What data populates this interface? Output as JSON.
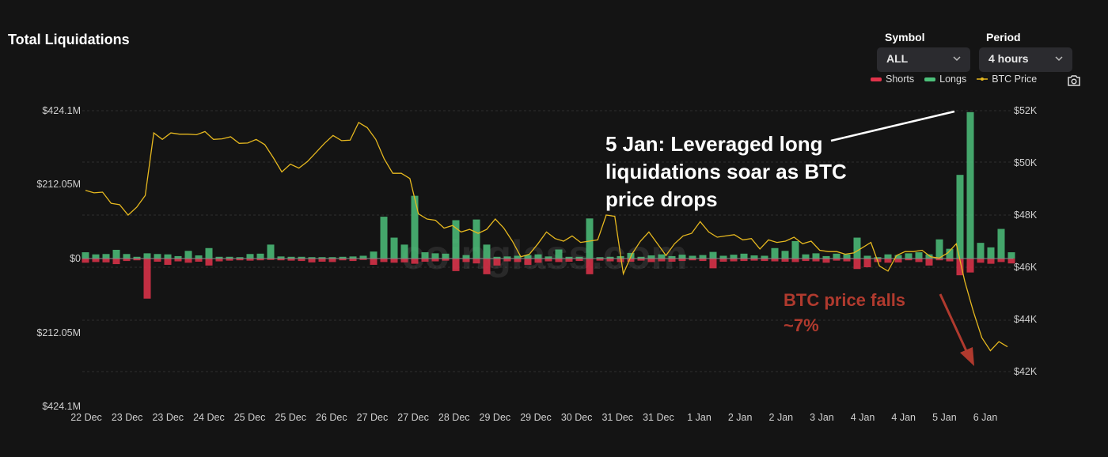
{
  "header": {
    "title": "Total Liquidations",
    "symbol_label": "Symbol",
    "symbol_value": "ALL",
    "period_label": "Period",
    "period_value": "4 hours"
  },
  "legend": [
    {
      "name": "Shorts",
      "color": "#e0334a",
      "marker": "bar"
    },
    {
      "name": "Longs",
      "color": "#4cc07a",
      "marker": "bar"
    },
    {
      "name": "BTC Price",
      "color": "#e6b81f",
      "marker": "line"
    }
  ],
  "icons": {
    "screenshot": "camera-icon",
    "dropdown": "chevron-down-icon"
  },
  "watermark": "coinglass.com",
  "annotations": {
    "main": [
      "5 Jan: Leveraged long",
      "liquidations soar as BTC",
      "price drops"
    ],
    "price_fall": [
      "BTC price falls",
      "~7%"
    ]
  },
  "chart_data": {
    "type": "bar",
    "title": "Total Liquidations",
    "x_tick_labels": [
      "22 Dec",
      "23 Dec",
      "23 Dec",
      "24 Dec",
      "25 Dec",
      "25 Dec",
      "26 Dec",
      "27 Dec",
      "27 Dec",
      "28 Dec",
      "29 Dec",
      "29 Dec",
      "30 Dec",
      "31 Dec",
      "31 Dec",
      "1 Jan",
      "2 Jan",
      "2 Jan",
      "3 Jan",
      "4 Jan",
      "4 Jan",
      "5 Jan",
      "6 Jan"
    ],
    "y_left_tick_labels": [
      "$424.1M",
      "$212.05M",
      "$0",
      "$212.05M",
      "$424.1M"
    ],
    "y_left_range_musd": [
      -424.1,
      424.1
    ],
    "y_right_tick_labels": [
      "$52K",
      "$50K",
      "$48K",
      "$46K",
      "$44K",
      "$42K"
    ],
    "y_right_range_usd": [
      42000,
      52000
    ],
    "grid": true,
    "legend_position": "top-right",
    "series": [
      {
        "name": "Longs",
        "color": "#4cc07a",
        "units": "USD millions",
        "values": [
          18,
          12,
          13,
          25,
          13,
          5,
          15,
          13,
          12,
          7,
          22,
          9,
          30,
          5,
          5,
          4,
          13,
          14,
          40,
          6,
          5,
          5,
          4,
          4,
          4,
          5,
          6,
          8,
          20,
          120,
          60,
          40,
          180,
          18,
          15,
          14,
          110,
          10,
          112,
          40,
          5,
          6,
          8,
          10,
          12,
          6,
          26,
          5,
          5,
          115,
          4,
          5,
          7,
          16,
          5,
          9,
          12,
          7,
          11,
          8,
          10,
          19,
          8,
          11,
          14,
          9,
          8,
          30,
          22,
          50,
          12,
          15,
          7,
          14,
          12,
          60,
          8,
          4,
          12,
          10,
          15,
          18,
          12,
          55,
          28,
          240,
          420,
          45,
          32,
          85,
          18
        ]
      },
      {
        "name": "Shorts",
        "color": "#e0334a",
        "units": "USD millions",
        "values": [
          12,
          10,
          11,
          16,
          7,
          5,
          115,
          9,
          18,
          8,
          12,
          9,
          20,
          8,
          6,
          5,
          6,
          5,
          4,
          5,
          6,
          7,
          11,
          9,
          10,
          5,
          7,
          4,
          18,
          10,
          12,
          11,
          15,
          9,
          8,
          6,
          36,
          10,
          14,
          45,
          20,
          8,
          10,
          18,
          12,
          8,
          10,
          9,
          7,
          45,
          6,
          8,
          10,
          9,
          6,
          10,
          8,
          9,
          7,
          5,
          7,
          28,
          9,
          8,
          7,
          6,
          7,
          8,
          9,
          10,
          7,
          8,
          12,
          6,
          8,
          30,
          25,
          10,
          12,
          11,
          5,
          10,
          20,
          5,
          8,
          48,
          40,
          12,
          15,
          10,
          14
        ]
      },
      {
        "name": "BTC Price",
        "color": "#e6b81f",
        "units": "USD",
        "values": [
          48950,
          48850,
          48880,
          48450,
          48400,
          48000,
          48300,
          48750,
          51150,
          50900,
          51150,
          51100,
          51100,
          51080,
          51200,
          50900,
          50920,
          51000,
          50750,
          50760,
          50900,
          50700,
          50200,
          49650,
          49950,
          49800,
          50050,
          50400,
          50750,
          51050,
          50850,
          50870,
          51550,
          51350,
          50900,
          50150,
          49600,
          49600,
          49400,
          48050,
          47850,
          47800,
          47500,
          47600,
          47350,
          47450,
          47300,
          47450,
          47850,
          47500,
          47000,
          46400,
          46500,
          46900,
          47350,
          47100,
          47000,
          47200,
          46950,
          47000,
          47050,
          48000,
          47950,
          45750,
          46500,
          47000,
          47350,
          46900,
          46450,
          46900,
          47200,
          47300,
          47750,
          47350,
          47150,
          47200,
          47250,
          47050,
          47100,
          46700,
          47050,
          46950,
          47000,
          47150,
          46900,
          47000,
          46650,
          46600,
          46600,
          46500,
          46550,
          46750,
          46950,
          46050,
          45850,
          46450,
          46600,
          46600,
          46650,
          46400,
          46350,
          46550,
          46900,
          45450,
          44300,
          43300,
          42800,
          43150,
          42950
        ]
      }
    ]
  }
}
